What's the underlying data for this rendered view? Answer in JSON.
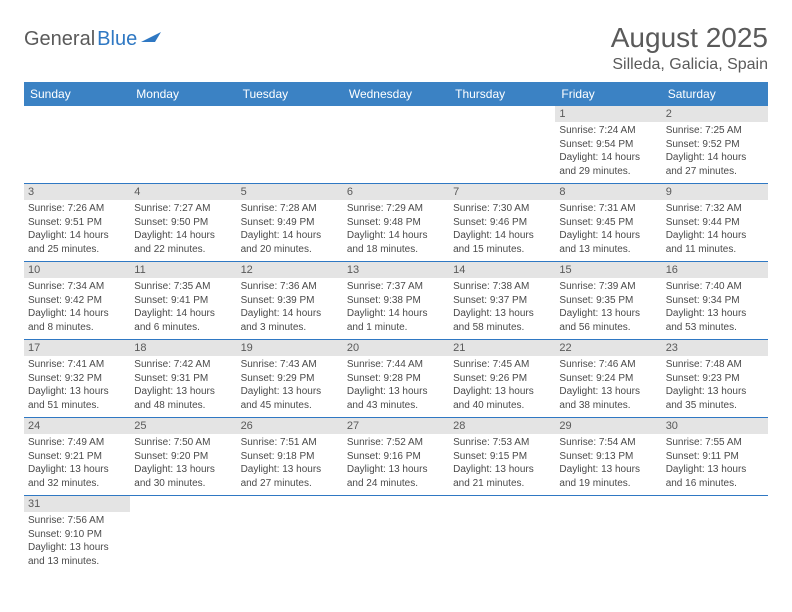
{
  "logo": {
    "text1": "General",
    "text2": "Blue"
  },
  "title": "August 2025",
  "location": "Silleda, Galicia, Spain",
  "colors": {
    "header_bg": "#3b82c4",
    "header_fg": "#ffffff",
    "daynum_bg": "#e4e4e4",
    "rule": "#2f78c3"
  },
  "weekdays": [
    "Sunday",
    "Monday",
    "Tuesday",
    "Wednesday",
    "Thursday",
    "Friday",
    "Saturday"
  ],
  "weeks": [
    [
      null,
      null,
      null,
      null,
      null,
      {
        "n": "1",
        "sunrise": "Sunrise: 7:24 AM",
        "sunset": "Sunset: 9:54 PM",
        "day1": "Daylight: 14 hours",
        "day2": "and 29 minutes."
      },
      {
        "n": "2",
        "sunrise": "Sunrise: 7:25 AM",
        "sunset": "Sunset: 9:52 PM",
        "day1": "Daylight: 14 hours",
        "day2": "and 27 minutes."
      }
    ],
    [
      {
        "n": "3",
        "sunrise": "Sunrise: 7:26 AM",
        "sunset": "Sunset: 9:51 PM",
        "day1": "Daylight: 14 hours",
        "day2": "and 25 minutes."
      },
      {
        "n": "4",
        "sunrise": "Sunrise: 7:27 AM",
        "sunset": "Sunset: 9:50 PM",
        "day1": "Daylight: 14 hours",
        "day2": "and 22 minutes."
      },
      {
        "n": "5",
        "sunrise": "Sunrise: 7:28 AM",
        "sunset": "Sunset: 9:49 PM",
        "day1": "Daylight: 14 hours",
        "day2": "and 20 minutes."
      },
      {
        "n": "6",
        "sunrise": "Sunrise: 7:29 AM",
        "sunset": "Sunset: 9:48 PM",
        "day1": "Daylight: 14 hours",
        "day2": "and 18 minutes."
      },
      {
        "n": "7",
        "sunrise": "Sunrise: 7:30 AM",
        "sunset": "Sunset: 9:46 PM",
        "day1": "Daylight: 14 hours",
        "day2": "and 15 minutes."
      },
      {
        "n": "8",
        "sunrise": "Sunrise: 7:31 AM",
        "sunset": "Sunset: 9:45 PM",
        "day1": "Daylight: 14 hours",
        "day2": "and 13 minutes."
      },
      {
        "n": "9",
        "sunrise": "Sunrise: 7:32 AM",
        "sunset": "Sunset: 9:44 PM",
        "day1": "Daylight: 14 hours",
        "day2": "and 11 minutes."
      }
    ],
    [
      {
        "n": "10",
        "sunrise": "Sunrise: 7:34 AM",
        "sunset": "Sunset: 9:42 PM",
        "day1": "Daylight: 14 hours",
        "day2": "and 8 minutes."
      },
      {
        "n": "11",
        "sunrise": "Sunrise: 7:35 AM",
        "sunset": "Sunset: 9:41 PM",
        "day1": "Daylight: 14 hours",
        "day2": "and 6 minutes."
      },
      {
        "n": "12",
        "sunrise": "Sunrise: 7:36 AM",
        "sunset": "Sunset: 9:39 PM",
        "day1": "Daylight: 14 hours",
        "day2": "and 3 minutes."
      },
      {
        "n": "13",
        "sunrise": "Sunrise: 7:37 AM",
        "sunset": "Sunset: 9:38 PM",
        "day1": "Daylight: 14 hours",
        "day2": "and 1 minute."
      },
      {
        "n": "14",
        "sunrise": "Sunrise: 7:38 AM",
        "sunset": "Sunset: 9:37 PM",
        "day1": "Daylight: 13 hours",
        "day2": "and 58 minutes."
      },
      {
        "n": "15",
        "sunrise": "Sunrise: 7:39 AM",
        "sunset": "Sunset: 9:35 PM",
        "day1": "Daylight: 13 hours",
        "day2": "and 56 minutes."
      },
      {
        "n": "16",
        "sunrise": "Sunrise: 7:40 AM",
        "sunset": "Sunset: 9:34 PM",
        "day1": "Daylight: 13 hours",
        "day2": "and 53 minutes."
      }
    ],
    [
      {
        "n": "17",
        "sunrise": "Sunrise: 7:41 AM",
        "sunset": "Sunset: 9:32 PM",
        "day1": "Daylight: 13 hours",
        "day2": "and 51 minutes."
      },
      {
        "n": "18",
        "sunrise": "Sunrise: 7:42 AM",
        "sunset": "Sunset: 9:31 PM",
        "day1": "Daylight: 13 hours",
        "day2": "and 48 minutes."
      },
      {
        "n": "19",
        "sunrise": "Sunrise: 7:43 AM",
        "sunset": "Sunset: 9:29 PM",
        "day1": "Daylight: 13 hours",
        "day2": "and 45 minutes."
      },
      {
        "n": "20",
        "sunrise": "Sunrise: 7:44 AM",
        "sunset": "Sunset: 9:28 PM",
        "day1": "Daylight: 13 hours",
        "day2": "and 43 minutes."
      },
      {
        "n": "21",
        "sunrise": "Sunrise: 7:45 AM",
        "sunset": "Sunset: 9:26 PM",
        "day1": "Daylight: 13 hours",
        "day2": "and 40 minutes."
      },
      {
        "n": "22",
        "sunrise": "Sunrise: 7:46 AM",
        "sunset": "Sunset: 9:24 PM",
        "day1": "Daylight: 13 hours",
        "day2": "and 38 minutes."
      },
      {
        "n": "23",
        "sunrise": "Sunrise: 7:48 AM",
        "sunset": "Sunset: 9:23 PM",
        "day1": "Daylight: 13 hours",
        "day2": "and 35 minutes."
      }
    ],
    [
      {
        "n": "24",
        "sunrise": "Sunrise: 7:49 AM",
        "sunset": "Sunset: 9:21 PM",
        "day1": "Daylight: 13 hours",
        "day2": "and 32 minutes."
      },
      {
        "n": "25",
        "sunrise": "Sunrise: 7:50 AM",
        "sunset": "Sunset: 9:20 PM",
        "day1": "Daylight: 13 hours",
        "day2": "and 30 minutes."
      },
      {
        "n": "26",
        "sunrise": "Sunrise: 7:51 AM",
        "sunset": "Sunset: 9:18 PM",
        "day1": "Daylight: 13 hours",
        "day2": "and 27 minutes."
      },
      {
        "n": "27",
        "sunrise": "Sunrise: 7:52 AM",
        "sunset": "Sunset: 9:16 PM",
        "day1": "Daylight: 13 hours",
        "day2": "and 24 minutes."
      },
      {
        "n": "28",
        "sunrise": "Sunrise: 7:53 AM",
        "sunset": "Sunset: 9:15 PM",
        "day1": "Daylight: 13 hours",
        "day2": "and 21 minutes."
      },
      {
        "n": "29",
        "sunrise": "Sunrise: 7:54 AM",
        "sunset": "Sunset: 9:13 PM",
        "day1": "Daylight: 13 hours",
        "day2": "and 19 minutes."
      },
      {
        "n": "30",
        "sunrise": "Sunrise: 7:55 AM",
        "sunset": "Sunset: 9:11 PM",
        "day1": "Daylight: 13 hours",
        "day2": "and 16 minutes."
      }
    ],
    [
      {
        "n": "31",
        "sunrise": "Sunrise: 7:56 AM",
        "sunset": "Sunset: 9:10 PM",
        "day1": "Daylight: 13 hours",
        "day2": "and 13 minutes."
      },
      null,
      null,
      null,
      null,
      null,
      null
    ]
  ]
}
